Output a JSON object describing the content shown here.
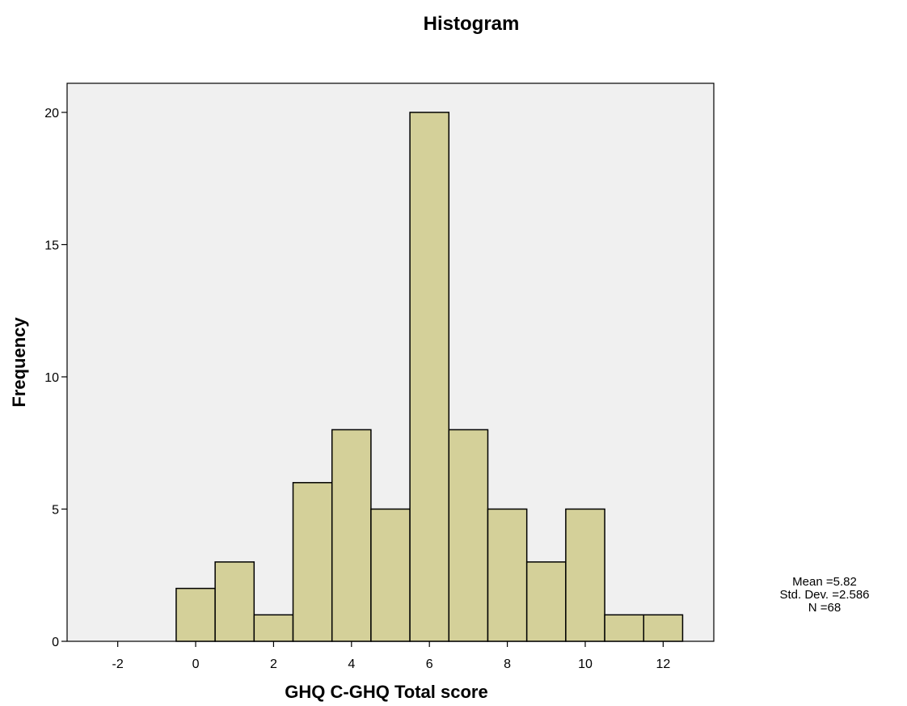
{
  "chart_data": {
    "type": "bar",
    "title": "Histogram",
    "xlabel": "GHQ C-GHQ Total score",
    "ylabel": "Frequency",
    "bin_width": 1,
    "bins": [
      {
        "x": 0,
        "count": 2
      },
      {
        "x": 1,
        "count": 3
      },
      {
        "x": 2,
        "count": 1
      },
      {
        "x": 3,
        "count": 6
      },
      {
        "x": 4,
        "count": 8
      },
      {
        "x": 5,
        "count": 5
      },
      {
        "x": 6,
        "count": 20
      },
      {
        "x": 7,
        "count": 8
      },
      {
        "x": 8,
        "count": 5
      },
      {
        "x": 9,
        "count": 3
      },
      {
        "x": 10,
        "count": 5
      },
      {
        "x": 11,
        "count": 1
      },
      {
        "x": 12,
        "count": 1
      }
    ],
    "xlim": [
      -3.3,
      13.3
    ],
    "ylim": [
      0,
      21.1
    ],
    "x_ticks": [
      -2,
      0,
      2,
      4,
      6,
      8,
      10,
      12
    ],
    "y_ticks": [
      0,
      5,
      10,
      15,
      20
    ],
    "grid": false,
    "colors": {
      "bar_fill": "#d4d099",
      "bar_stroke": "#000000",
      "plot_background": "#f0f0f0"
    },
    "stats": {
      "mean": "Mean =5.82",
      "std_dev": "Std. Dev. =2.586",
      "n": "N =68"
    }
  }
}
